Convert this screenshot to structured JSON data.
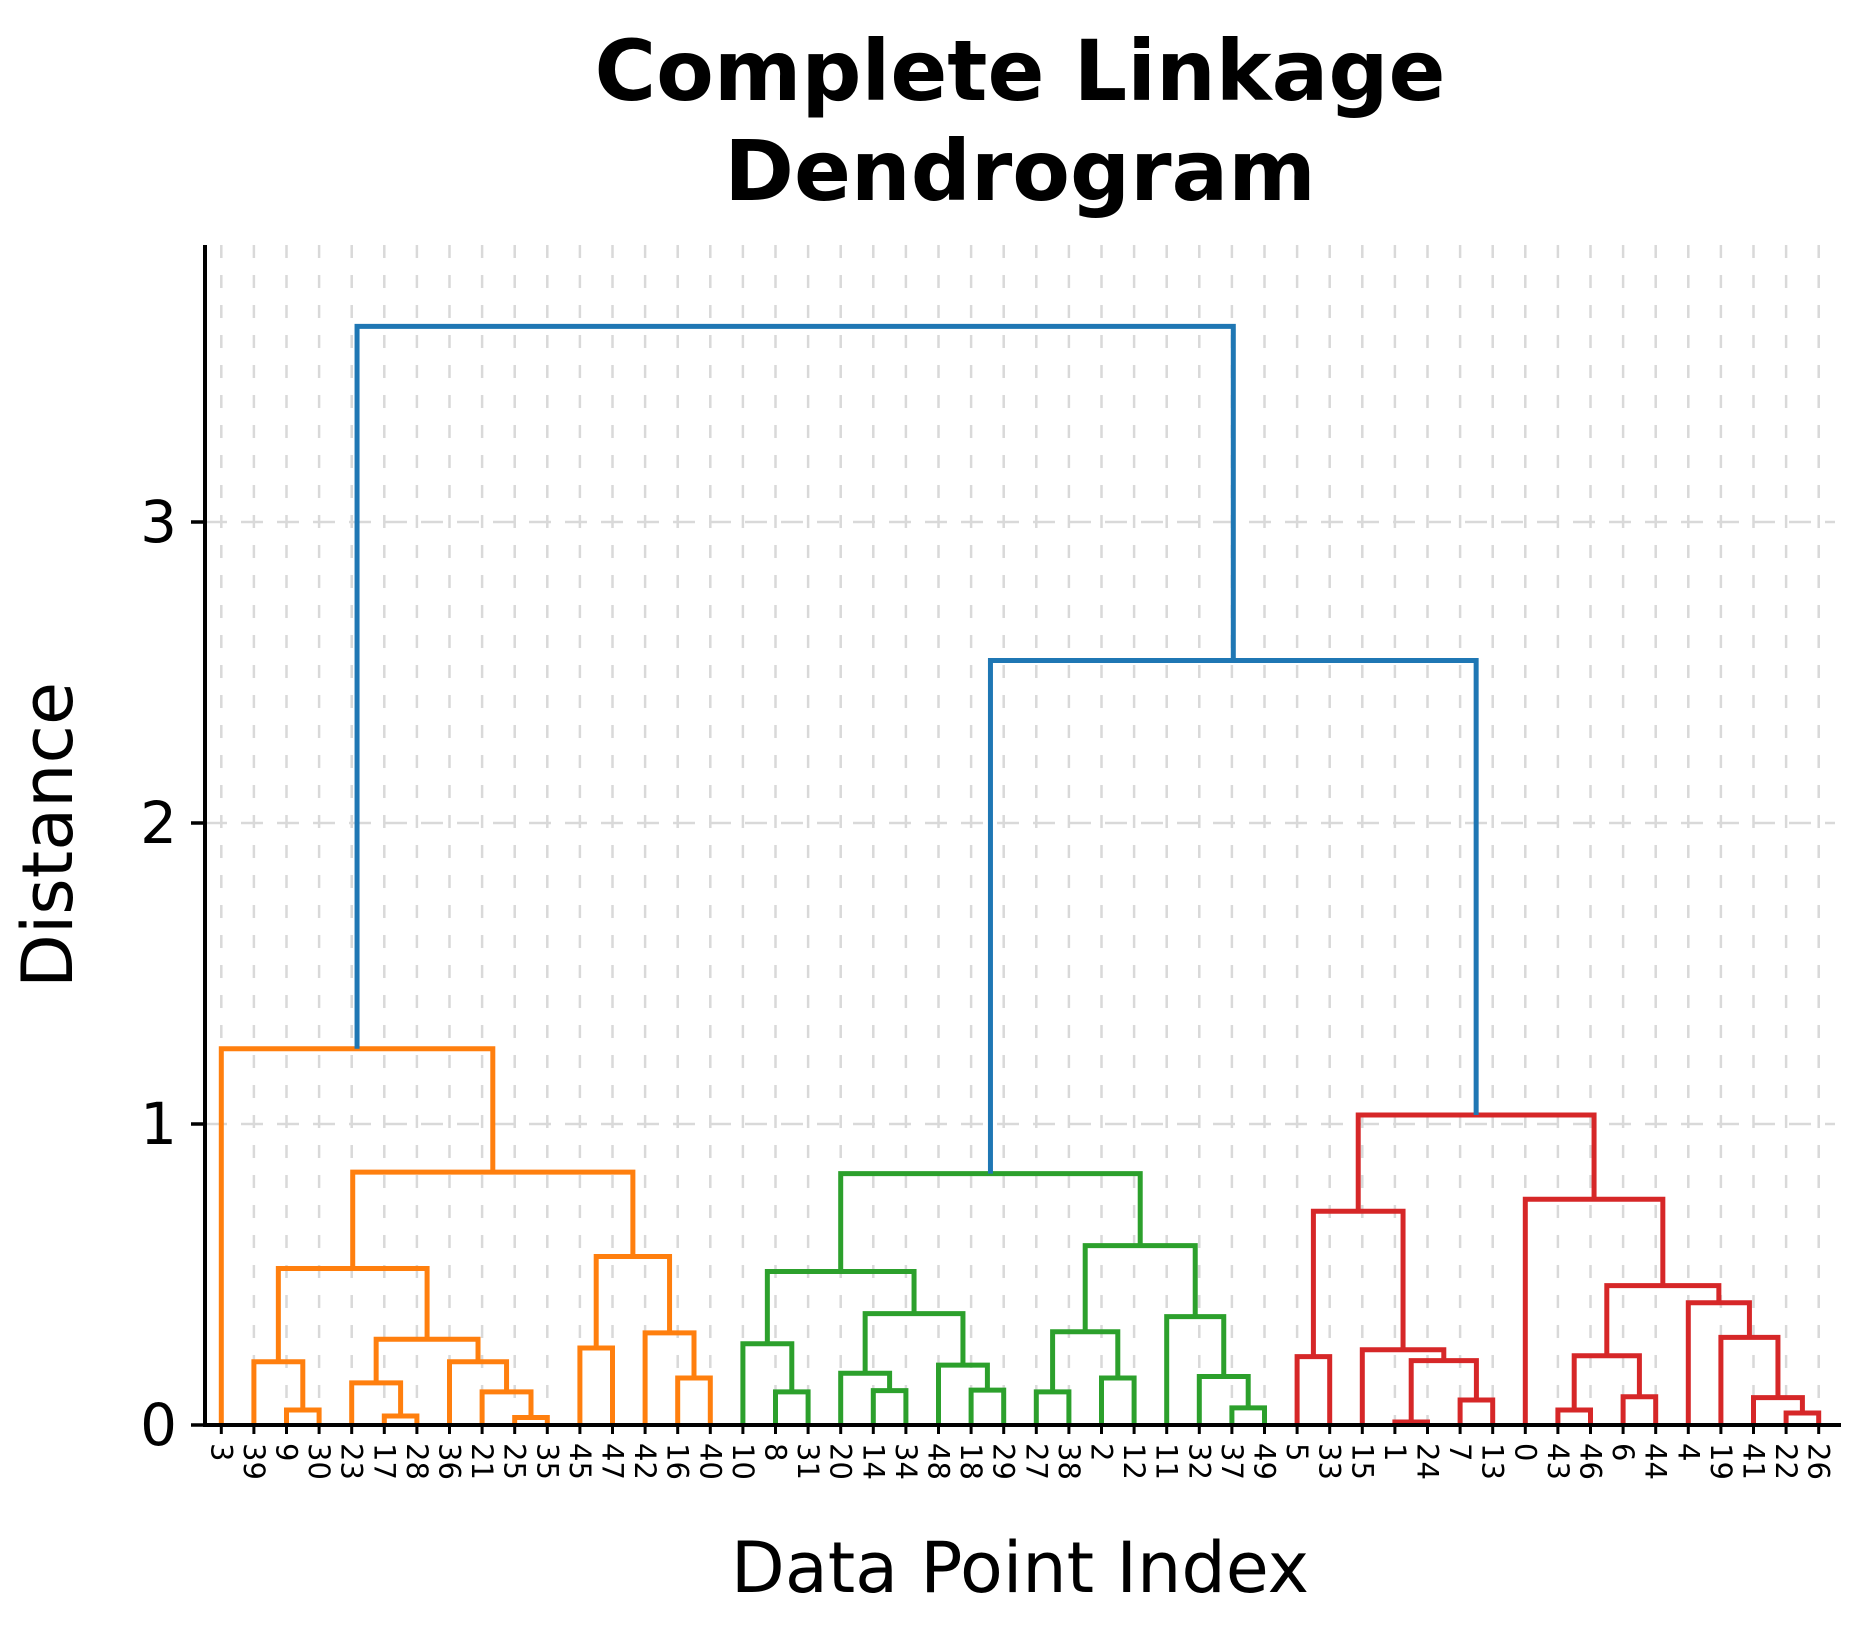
{
  "chart_data": {
    "type": "dendrogram",
    "title_lines": [
      "Complete Linkage",
      "Dendrogram"
    ],
    "xlabel": "Data Point Index",
    "ylabel": "Distance",
    "yticks": [
      0,
      1,
      2,
      3
    ],
    "ylim": [
      0,
      3.92
    ],
    "grid": "dashed light gray, vertical line per leaf and horizontal per y tick",
    "legend": "none",
    "leaf_order": [
      "3",
      "39",
      "9",
      "30",
      "23",
      "17",
      "28",
      "36",
      "21",
      "25",
      "35",
      "45",
      "47",
      "42",
      "16",
      "40",
      "10",
      "8",
      "31",
      "20",
      "14",
      "34",
      "48",
      "18",
      "29",
      "27",
      "38",
      "2",
      "12",
      "11",
      "32",
      "37",
      "49",
      "5",
      "33",
      "15",
      "1",
      "24",
      "7",
      "13",
      "0",
      "43",
      "46",
      "6",
      "44",
      "4",
      "19",
      "41",
      "22",
      "26"
    ],
    "colors": {
      "blue": "#1f77b4",
      "orange": "#ff7f0e",
      "green": "#2ca02c",
      "red": "#d62728",
      "grid": "#d9d9d9",
      "spine": "#000000"
    },
    "merges": [
      {
        "l": "L2",
        "r": "L3",
        "h": 0.05,
        "c": "orange"
      },
      {
        "l": "L1",
        "r": "M0",
        "h": 0.21,
        "c": "orange"
      },
      {
        "l": "L5",
        "r": "L6",
        "h": 0.03,
        "c": "orange"
      },
      {
        "l": "L4",
        "r": "M2",
        "h": 0.14,
        "c": "orange"
      },
      {
        "l": "L9",
        "r": "L10",
        "h": 0.025,
        "c": "orange"
      },
      {
        "l": "L8",
        "r": "M4",
        "h": 0.11,
        "c": "orange"
      },
      {
        "l": "L7",
        "r": "M5",
        "h": 0.21,
        "c": "orange"
      },
      {
        "l": "M3",
        "r": "M6",
        "h": 0.285,
        "c": "orange"
      },
      {
        "l": "M1",
        "r": "M7",
        "h": 0.52,
        "c": "orange"
      },
      {
        "l": "L11",
        "r": "L12",
        "h": 0.256,
        "c": "orange"
      },
      {
        "l": "L14",
        "r": "L15",
        "h": 0.156,
        "c": "orange"
      },
      {
        "l": "L13",
        "r": "M10",
        "h": 0.306,
        "c": "orange"
      },
      {
        "l": "M9",
        "r": "M11",
        "h": 0.56,
        "c": "orange"
      },
      {
        "l": "M8",
        "r": "M12",
        "h": 0.84,
        "c": "orange"
      },
      {
        "l": "L0",
        "r": "M13",
        "h": 1.25,
        "c": "orange"
      },
      {
        "l": "L17",
        "r": "L18",
        "h": 0.11,
        "c": "green"
      },
      {
        "l": "L16",
        "r": "M15",
        "h": 0.27,
        "c": "green"
      },
      {
        "l": "L20",
        "r": "L21",
        "h": 0.114,
        "c": "green"
      },
      {
        "l": "L19",
        "r": "M17",
        "h": 0.172,
        "c": "green"
      },
      {
        "l": "L23",
        "r": "L24",
        "h": 0.116,
        "c": "green"
      },
      {
        "l": "L22",
        "r": "M19",
        "h": 0.199,
        "c": "green"
      },
      {
        "l": "M18",
        "r": "M20",
        "h": 0.37,
        "c": "green"
      },
      {
        "l": "M16",
        "r": "M21",
        "h": 0.51,
        "c": "green"
      },
      {
        "l": "L25",
        "r": "L26",
        "h": 0.11,
        "c": "green"
      },
      {
        "l": "L27",
        "r": "L28",
        "h": 0.156,
        "c": "green"
      },
      {
        "l": "M23",
        "r": "M24",
        "h": 0.31,
        "c": "green"
      },
      {
        "l": "L31",
        "r": "L32",
        "h": 0.057,
        "c": "green"
      },
      {
        "l": "L30",
        "r": "M26",
        "h": 0.161,
        "c": "green"
      },
      {
        "l": "L29",
        "r": "M27",
        "h": 0.36,
        "c": "green"
      },
      {
        "l": "M25",
        "r": "M28",
        "h": 0.596,
        "c": "green"
      },
      {
        "l": "M22",
        "r": "M29",
        "h": 0.835,
        "c": "green"
      },
      {
        "l": "L33",
        "r": "L34",
        "h": 0.227,
        "c": "red"
      },
      {
        "l": "L36",
        "r": "L37",
        "h": 0.01,
        "c": "red"
      },
      {
        "l": "L38",
        "r": "L39",
        "h": 0.083,
        "c": "red"
      },
      {
        "l": "M32",
        "r": "M33",
        "h": 0.214,
        "c": "red"
      },
      {
        "l": "L35",
        "r": "M34",
        "h": 0.25,
        "c": "red"
      },
      {
        "l": "M31",
        "r": "M35",
        "h": 0.71,
        "c": "red"
      },
      {
        "l": "L41",
        "r": "L42",
        "h": 0.05,
        "c": "red"
      },
      {
        "l": "L43",
        "r": "L44",
        "h": 0.094,
        "c": "red"
      },
      {
        "l": "M37",
        "r": "M38",
        "h": 0.23,
        "c": "red"
      },
      {
        "l": "L48",
        "r": "L49",
        "h": 0.04,
        "c": "red"
      },
      {
        "l": "L47",
        "r": "M40",
        "h": 0.091,
        "c": "red"
      },
      {
        "l": "L46",
        "r": "M41",
        "h": 0.291,
        "c": "red"
      },
      {
        "l": "L45",
        "r": "M42",
        "h": 0.406,
        "c": "red"
      },
      {
        "l": "M39",
        "r": "M43",
        "h": 0.463,
        "c": "red"
      },
      {
        "l": "L40",
        "r": "M44",
        "h": 0.75,
        "c": "red"
      },
      {
        "l": "M36",
        "r": "M45",
        "h": 1.03,
        "c": "red"
      },
      {
        "l": "M30",
        "r": "M46",
        "h": 2.54,
        "c": "blue"
      },
      {
        "l": "M14",
        "r": "M47",
        "h": 3.65,
        "c": "blue"
      }
    ]
  }
}
